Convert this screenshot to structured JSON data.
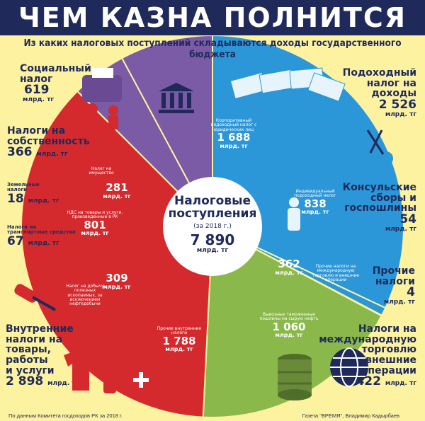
{
  "title": "ЧЕМ КАЗНА ПОЛНИТСЯ",
  "subtitle": "Из каких налоговых поступлений складываются доходы государственного бюджета",
  "center": {
    "label_line1": "Налоговые",
    "label_line2": "поступления",
    "year": "(за 2018 г.)",
    "total": "7 890",
    "unit": "млрд. тг"
  },
  "colors": {
    "blue": "#2b96d8",
    "purple": "#7b5aa6",
    "red": "#d42a2e",
    "green": "#8ab84a",
    "olive": "#a9c85a",
    "navy": "#1f2a5a",
    "yellow": "#fdf2a0"
  },
  "outer_labels": {
    "social": {
      "name_line1": "Социальный",
      "name_line2": "налог",
      "value": "619",
      "unit": "млрд. тг"
    },
    "property": {
      "name_line1": "Налоги на",
      "name_line2": "собственность",
      "value": "366",
      "unit": "млрд. тг"
    },
    "land": {
      "name_line1": "Земельные",
      "name_line2": "налоги",
      "value": "18",
      "unit": "млрд. тг"
    },
    "transport": {
      "name_line1": "Налоги на",
      "name_line2": "транспортные средства",
      "value": "67",
      "unit": "млрд. тг"
    },
    "internal": {
      "name_line1": "Внутренние",
      "name_line2": "налоги на",
      "name_line3": "товары,",
      "name_line4": "работы",
      "name_line5": "и услуги",
      "value": "2 898",
      "unit": "млрд. тг"
    },
    "income": {
      "name_line1": "Подоходный",
      "name_line2": "налог на",
      "name_line3": "доходы",
      "value": "2 526",
      "unit": "млрд. тг"
    },
    "consular": {
      "name_line1": "Консульские",
      "name_line2": "сборы и",
      "name_line3": "госпошлины",
      "value": "54",
      "unit": "млрд. тг"
    },
    "other": {
      "name_line1": "Прочие",
      "name_line2": "налоги",
      "value": "4",
      "unit": "млрд. тг"
    },
    "trade": {
      "name_line1": "Налоги на",
      "name_line2": "международную",
      "name_line3": "торговлю",
      "name_line4": "и внешние",
      "name_line5": "операции",
      "value": "1 422",
      "unit": "млрд. тг"
    }
  },
  "inner_labels": {
    "corporate": {
      "name": "Корпоративный подоходный налог с юридических лиц",
      "value": "1 688",
      "unit": "млрд. тг"
    },
    "individual": {
      "name": "Индивидуальный подоходный налог",
      "value": "838",
      "unit": "млрд. тг"
    },
    "property_tax": {
      "name": "Налог на имущество",
      "value": "281",
      "unit": "млрд. тг"
    },
    "vat": {
      "name": "НДС на товары и услуги, произведенные в РК",
      "value": "801",
      "unit": "млрд. тг"
    },
    "mining": {
      "name": "Налог на добычу полезных ископаемых, за исключением нефтедобычи",
      "value": "309",
      "unit": "млрд. тг"
    },
    "other_internal": {
      "name": "Прочие внутренние налоги",
      "value": "1 788",
      "unit": "млрд. тг"
    },
    "export_oil": {
      "name": "Вывозные таможенные пошлины на сырую нефть",
      "value": "1 060",
      "unit": "млрд. тг"
    },
    "other_trade": {
      "name": "Прочие налоги на международную торговлю и внешние операции",
      "value": "362",
      "unit": "млрд. тг"
    }
  },
  "footer": {
    "source": "По данным Комитета госдоходов РК за 2018 г.",
    "credit": "Газета \"ВРЕМЯ\", Владимир Кадырбаев"
  },
  "chart_data": {
    "type": "pie",
    "title": "Налоговые поступления (за 2018 г.)",
    "total": 7890,
    "unit": "млрд. тг",
    "slices": [
      {
        "name": "Подоходный налог на доходы",
        "value": 2526,
        "color": "#2b96d8"
      },
      {
        "name": "Консульские сборы и госпошлины",
        "value": 54,
        "color": "#2b96d8"
      },
      {
        "name": "Прочие налоги",
        "value": 4,
        "color": "#a9c85a"
      },
      {
        "name": "Налоги на международную торговлю и внешние операции",
        "value": 1422,
        "color": "#8ab84a"
      },
      {
        "name": "Внутренние налоги на товары, работы и услуги",
        "value": 2898,
        "color": "#d42a2e"
      },
      {
        "name": "Налоги на собственность",
        "value": 366,
        "color": "#7b5aa6"
      },
      {
        "name": "Социальный налог",
        "value": 619,
        "color": "#7b5aa6"
      }
    ]
  }
}
